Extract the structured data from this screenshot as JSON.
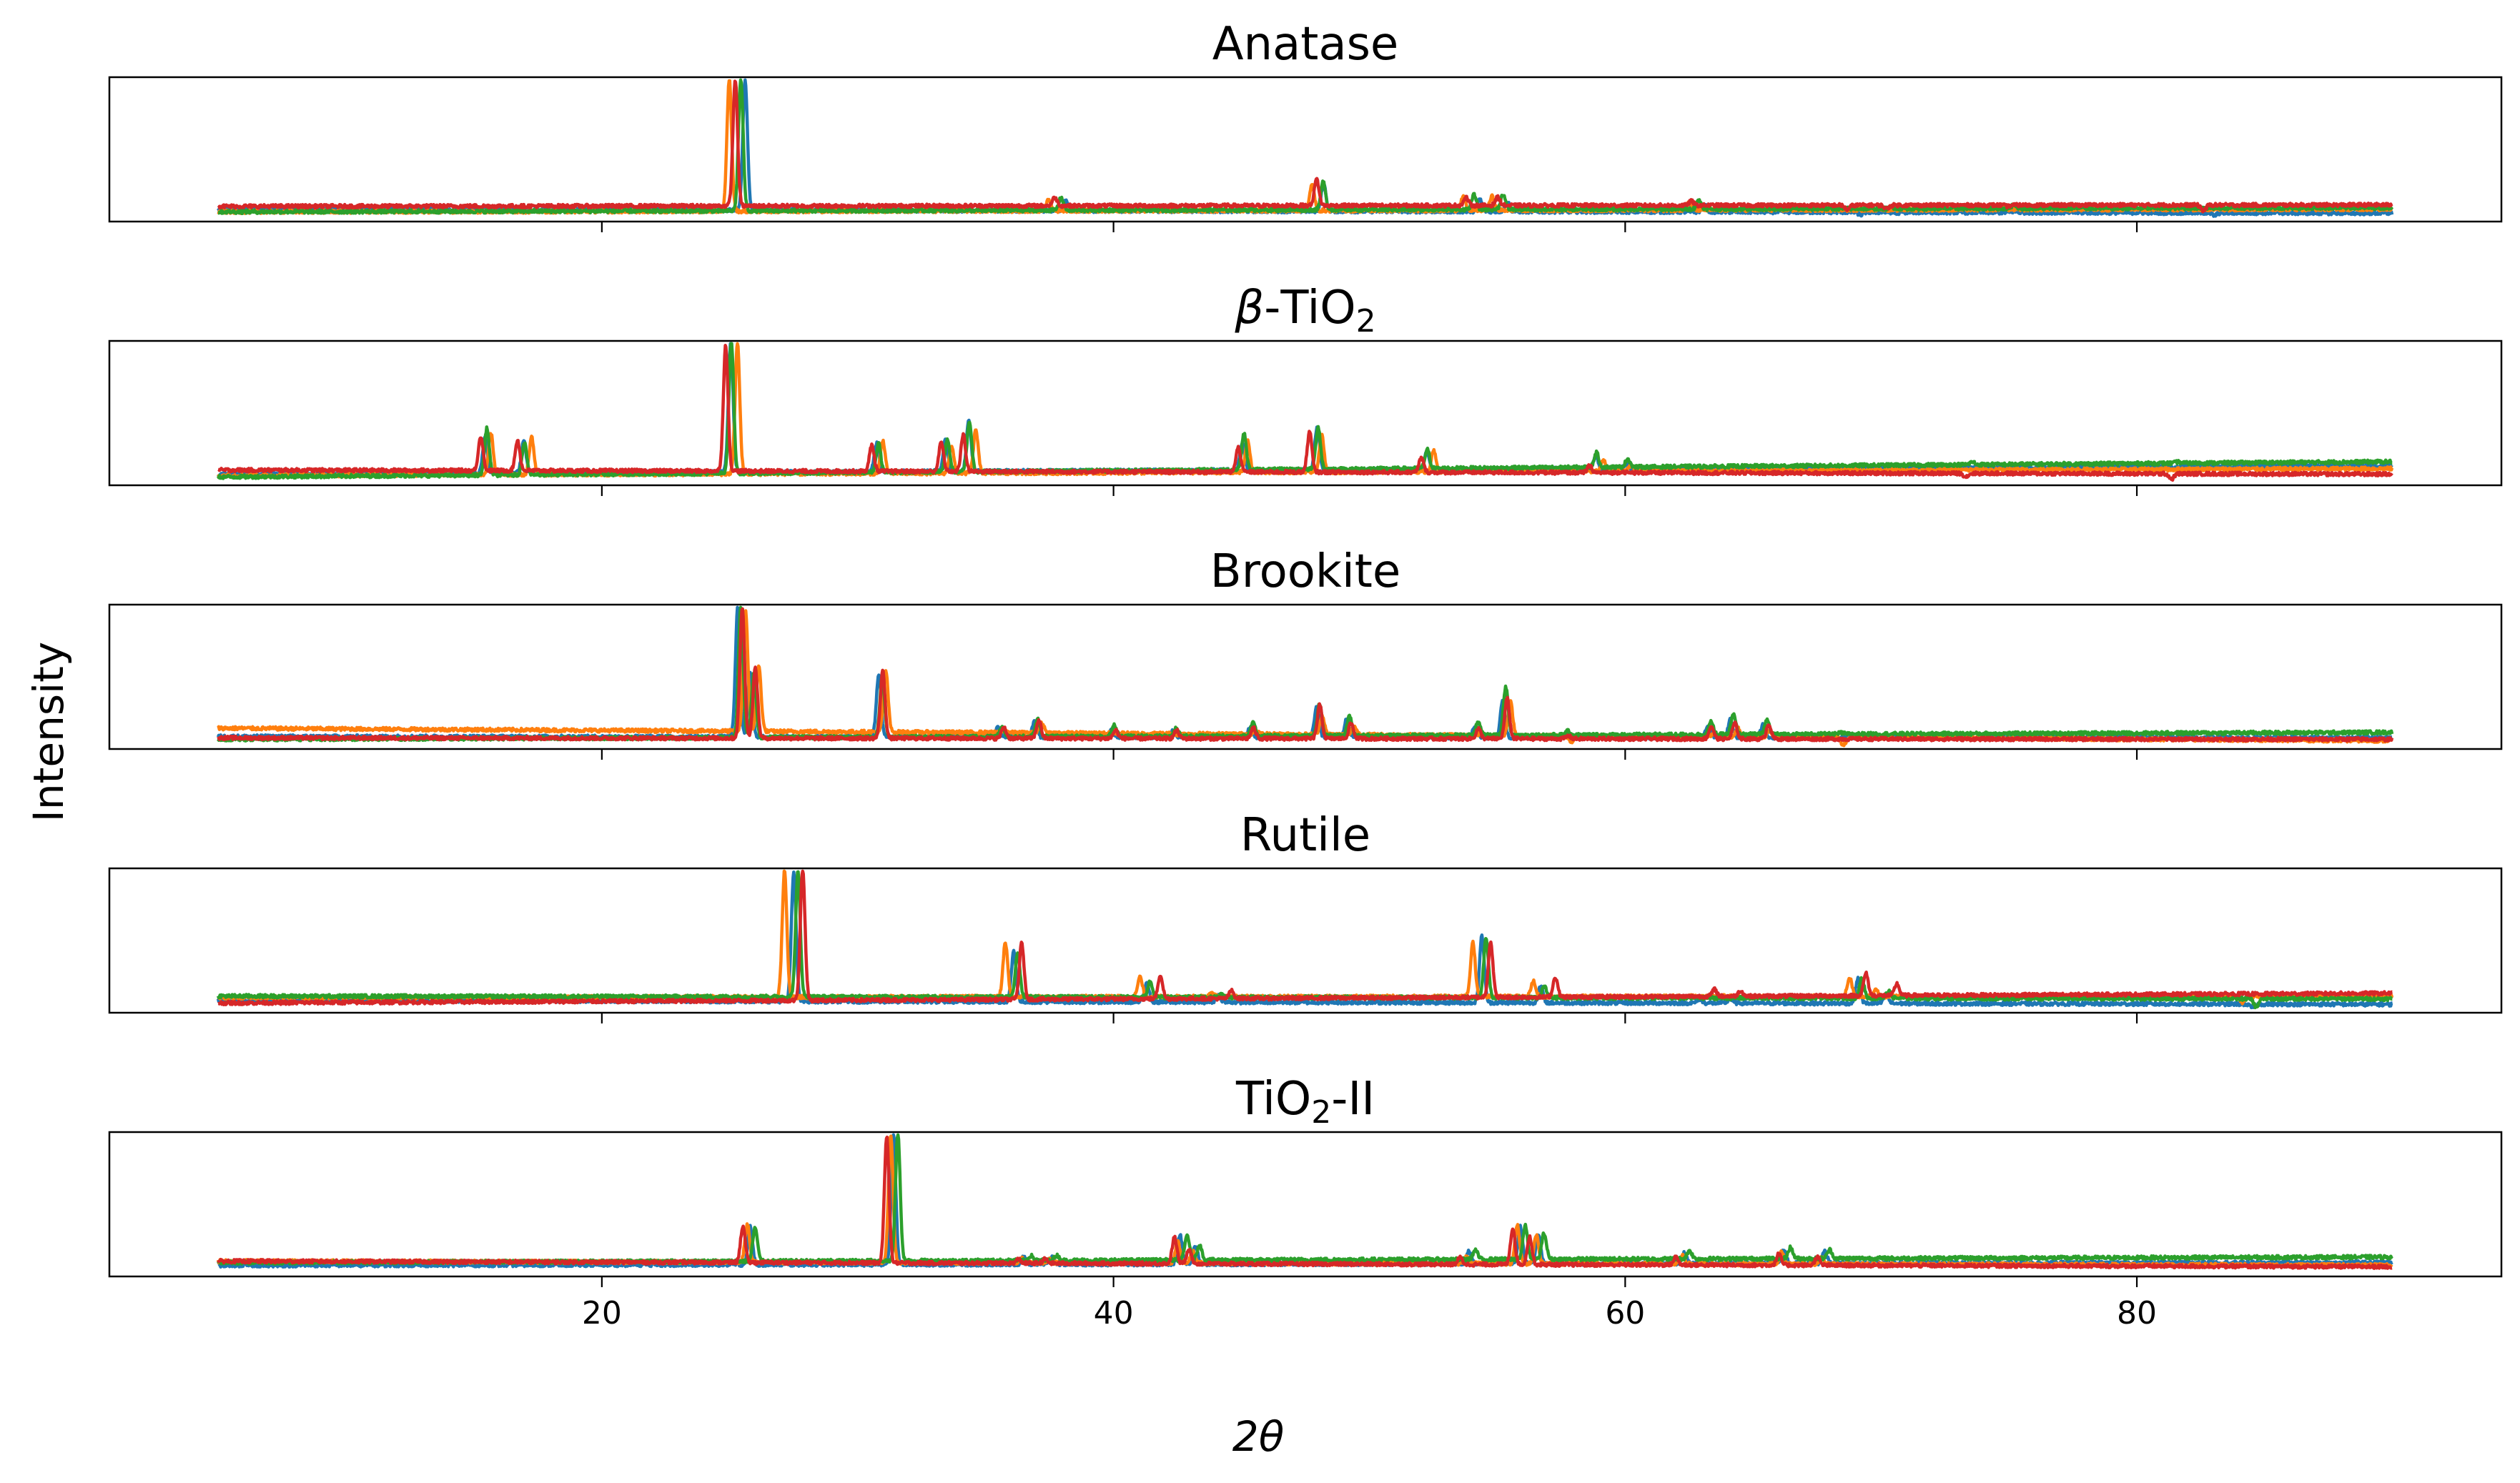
{
  "chart_data": {
    "type": "line",
    "xlabel": "2θ",
    "ylabel": "Intensity",
    "xlim": [
      0.75,
      94.25
    ],
    "ylim": [
      -0.02,
      1.02
    ],
    "x_range": [
      5,
      90
    ],
    "xticks": [
      20,
      40,
      60,
      80
    ],
    "xtick_labels": [
      "20",
      "40",
      "60",
      "80"
    ],
    "grid": false,
    "legend": "none",
    "series_colors": [
      "#1f77b4",
      "#ff7f0e",
      "#2ca02c",
      "#d62728"
    ],
    "panels": [
      {
        "title": "Anatase",
        "title_parts": [
          {
            "t": "Anatase"
          }
        ],
        "peaks": [
          [
            25.3,
            1
          ],
          [
            37.8,
            0.15
          ],
          [
            48.0,
            0.28
          ],
          [
            53.9,
            0.16
          ],
          [
            55.1,
            0.16
          ],
          [
            62.7,
            0.12
          ],
          [
            68.8,
            0.05
          ],
          [
            70.3,
            0.06
          ],
          [
            75.0,
            0.08
          ],
          [
            82.7,
            0.05
          ]
        ],
        "shifts": [
          0.35,
          -0.3,
          0.2,
          -0.1
        ],
        "baselines": [
          [
            0.07,
            0.04
          ],
          [
            0.05,
            0.07
          ],
          [
            0.05,
            0.08
          ],
          [
            0.09,
            0.1
          ]
        ]
      },
      {
        "title": "β-TiO2",
        "title_parts": [
          {
            "t": "β",
            "i": true
          },
          {
            "t": "-TiO"
          },
          {
            "t": "2",
            "sub": true
          }
        ],
        "peaks": [
          [
            15.4,
            0.38
          ],
          [
            16.9,
            0.32
          ],
          [
            25.0,
            1
          ],
          [
            30.7,
            0.3
          ],
          [
            33.4,
            0.3
          ],
          [
            34.3,
            0.42
          ],
          [
            45.0,
            0.3
          ],
          [
            47.9,
            0.38
          ],
          [
            52.2,
            0.2
          ],
          [
            58.8,
            0.15
          ],
          [
            60.0,
            0.1
          ],
          [
            73.5,
            0.06
          ],
          [
            81.5,
            0.05
          ]
        ],
        "shifts": [
          0.05,
          0.3,
          0.1,
          -0.2
        ],
        "baselines": [
          [
            0.06,
            0.12
          ],
          [
            0.05,
            0.1
          ],
          [
            0.04,
            0.15
          ],
          [
            0.09,
            0.06
          ]
        ]
      },
      {
        "title": "Brookite",
        "title_parts": [
          {
            "t": "Brookite"
          }
        ],
        "peaks": [
          [
            25.4,
            1
          ],
          [
            25.9,
            0.62
          ],
          [
            30.9,
            0.6
          ],
          [
            35.6,
            0.15
          ],
          [
            37.0,
            0.2
          ],
          [
            40.0,
            0.13
          ],
          [
            42.4,
            0.12
          ],
          [
            45.4,
            0.15
          ],
          [
            48.0,
            0.3
          ],
          [
            49.2,
            0.2
          ],
          [
            54.2,
            0.15
          ],
          [
            55.3,
            0.4
          ],
          [
            57.7,
            0.08
          ],
          [
            63.3,
            0.15
          ],
          [
            64.2,
            0.2
          ],
          [
            65.5,
            0.18
          ],
          [
            68.4,
            0.06
          ]
        ],
        "shifts": [
          -0.1,
          0.2,
          0.05,
          0.1
        ],
        "baselines": [
          [
            0.07,
            0.06
          ],
          [
            0.13,
            0.04
          ],
          [
            0.05,
            0.1
          ],
          [
            0.06,
            0.05
          ]
        ]
      },
      {
        "title": "Rutile",
        "title_parts": [
          {
            "t": "Rutile"
          }
        ],
        "peaks": [
          [
            27.5,
            1
          ],
          [
            36.1,
            0.5
          ],
          [
            41.3,
            0.24
          ],
          [
            44.1,
            0.12
          ],
          [
            54.4,
            0.55
          ],
          [
            56.7,
            0.2
          ],
          [
            62.9,
            0.1
          ],
          [
            64.1,
            0.1
          ],
          [
            69.1,
            0.25
          ],
          [
            70.2,
            0.15
          ],
          [
            84.5,
            0.04
          ]
        ],
        "shifts": [
          0.0,
          -0.4,
          0.15,
          0.5
        ],
        "baselines": [
          [
            0.07,
            0.04
          ],
          [
            0.09,
            0.1
          ],
          [
            0.1,
            0.08
          ],
          [
            0.05,
            0.12
          ]
        ]
      },
      {
        "title": "TiO2-II",
        "title_parts": [
          {
            "t": "TiO"
          },
          {
            "t": "2",
            "sub": true
          },
          {
            "t": "-II"
          }
        ],
        "peaks": [
          [
            25.8,
            0.38
          ],
          [
            31.4,
            1
          ],
          [
            36.5,
            0.12
          ],
          [
            37.6,
            0.12
          ],
          [
            42.6,
            0.28
          ],
          [
            43.2,
            0.2
          ],
          [
            53.9,
            0.15
          ],
          [
            55.9,
            0.38
          ],
          [
            56.6,
            0.3
          ],
          [
            62.3,
            0.15
          ],
          [
            66.2,
            0.18
          ],
          [
            67.8,
            0.15
          ]
        ],
        "shifts": [
          0.0,
          -0.1,
          0.25,
          -0.3
        ],
        "baselines": [
          [
            0.06,
            0.08
          ],
          [
            0.09,
            0.06
          ],
          [
            0.08,
            0.12
          ],
          [
            0.09,
            0.05
          ]
        ]
      }
    ]
  }
}
